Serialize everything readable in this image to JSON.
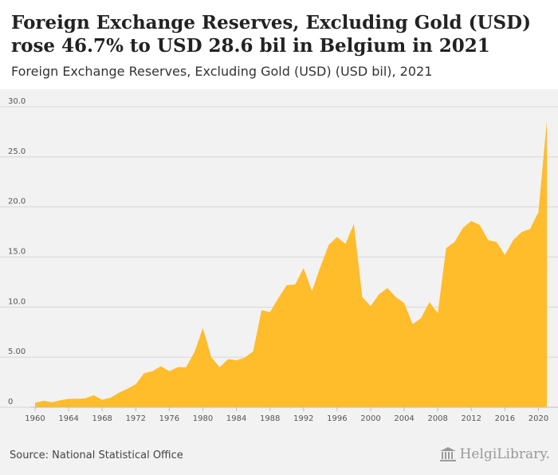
{
  "header": {
    "title": "Foreign Exchange Reserves, Excluding Gold (USD) rose 46.7% to USD 28.6 bil in Belgium in 2021",
    "subtitle": "Foreign Exchange Reserves, Excluding Gold (USD) (USD bil), 2021"
  },
  "footer": {
    "source": "Source: National Statistical Office",
    "brand": "HelgiLibrary."
  },
  "colors": {
    "area": "#ffbc2b",
    "grid": "#d6d6d6",
    "plot_background": "#f2f2f2"
  },
  "chart_data": {
    "type": "area",
    "xlim": [
      1960,
      2021
    ],
    "ylim": [
      0,
      30
    ],
    "ytick_labels": [
      "0",
      "5.00",
      "10.0",
      "15.0",
      "20.0",
      "25.0",
      "30.0"
    ],
    "xtick_labels": [
      "1960",
      "1964",
      "1968",
      "1972",
      "1976",
      "1980",
      "1984",
      "1988",
      "1992",
      "1996",
      "2000",
      "2004",
      "2008",
      "2012",
      "2016",
      "2020"
    ],
    "grid": true,
    "x": [
      1960,
      1961,
      1962,
      1963,
      1964,
      1965,
      1966,
      1967,
      1968,
      1969,
      1970,
      1971,
      1972,
      1973,
      1974,
      1975,
      1976,
      1977,
      1978,
      1979,
      1980,
      1981,
      1982,
      1983,
      1984,
      1985,
      1986,
      1987,
      1988,
      1989,
      1990,
      1991,
      1992,
      1993,
      1994,
      1995,
      1996,
      1997,
      1998,
      1999,
      2000,
      2001,
      2002,
      2003,
      2004,
      2005,
      2006,
      2007,
      2008,
      2009,
      2010,
      2011,
      2012,
      2013,
      2014,
      2015,
      2016,
      2017,
      2018,
      2019,
      2020,
      2021
    ],
    "values": [
      0.45,
      0.65,
      0.5,
      0.7,
      0.85,
      0.85,
      0.9,
      1.2,
      0.75,
      0.95,
      1.45,
      1.85,
      2.3,
      3.4,
      3.6,
      4.1,
      3.6,
      4.0,
      4.0,
      5.5,
      7.9,
      5.0,
      4.0,
      4.8,
      4.7,
      4.95,
      5.6,
      9.7,
      9.5,
      10.9,
      12.2,
      12.25,
      13.9,
      11.6,
      14.0,
      16.2,
      17.0,
      16.3,
      18.3,
      11.0,
      10.1,
      11.3,
      11.9,
      11.0,
      10.4,
      8.3,
      8.9,
      10.5,
      9.4,
      15.9,
      16.5,
      17.9,
      18.6,
      18.2,
      16.7,
      16.5,
      15.2,
      16.7,
      17.5,
      17.8,
      19.5,
      28.6
    ]
  }
}
